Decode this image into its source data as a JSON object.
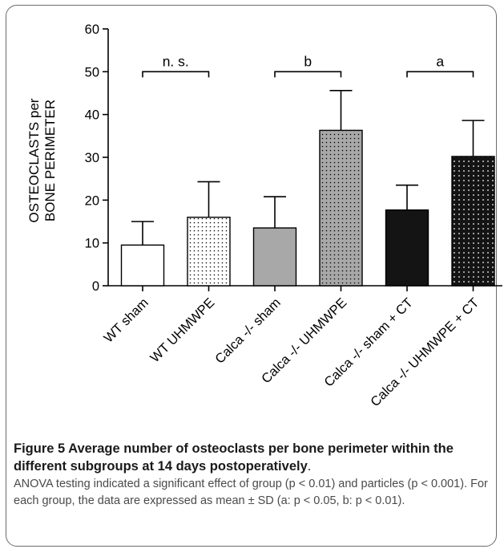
{
  "chart_data": {
    "type": "bar",
    "ylabel_line1": "OSTEOCLASTS per",
    "ylabel_line2": "BONE PERIMETER",
    "ylim": [
      0,
      60
    ],
    "yticks": [
      0,
      10,
      20,
      30,
      40,
      50,
      60
    ],
    "grid": false,
    "categories": [
      "WT sham",
      "WT UHMWPE",
      "Calca -/- sham",
      "Calca -/- UHMWPE",
      "Calca -/- sham + CT",
      "Calca -/- UHMWPE + CT"
    ],
    "values": [
      9.5,
      16,
      13.5,
      36.3,
      17.7,
      30.2
    ],
    "errors": [
      5.5,
      8.3,
      7.3,
      9.3,
      5.8,
      8.4
    ],
    "fills": [
      "white",
      "white-dots",
      "gray",
      "gray-dots",
      "black",
      "black-dots"
    ],
    "significance": [
      {
        "from": 0,
        "to": 1,
        "label": "n. s.",
        "y": 50
      },
      {
        "from": 2,
        "to": 3,
        "label": "b",
        "y": 50
      },
      {
        "from": 4,
        "to": 5,
        "label": "a",
        "y": 50
      }
    ]
  },
  "colors": {
    "gray": "#a8a8a8",
    "black": "#141414",
    "axis": "#000000"
  },
  "caption": {
    "heading": "Figure 5 Average number of osteoclasts per bone perimeter within the different subgroups at 14 days postoperatively",
    "heading_end": ".",
    "body": "ANOVA testing indicated a significant effect of group (p < 0.01) and particles (p < 0.001). For each group, the data are expressed as mean ± SD (a: p < 0.05, b: p < 0.01)."
  }
}
